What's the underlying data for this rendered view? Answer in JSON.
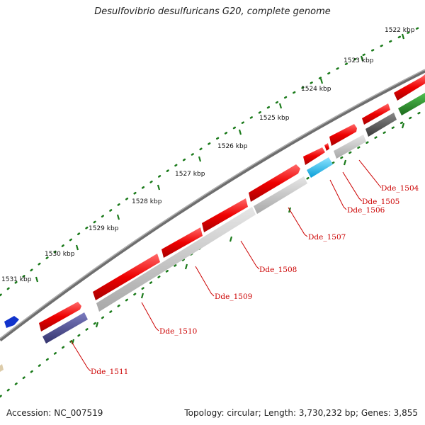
{
  "title": "Desulfovibrio desulfuricans G20, complete genome",
  "footer": {
    "accession": "Accession: NC_007519",
    "summary": "Topology: circular; Length: 3,730,232 bp; Genes: 3,855"
  },
  "ticks": [
    {
      "label": "1522 kbp",
      "kbp": 1522
    },
    {
      "label": "1523 kbp",
      "kbp": 1523
    },
    {
      "label": "1524 kbp",
      "kbp": 1524
    },
    {
      "label": "1525 kbp",
      "kbp": 1525
    },
    {
      "label": "1526 kbp",
      "kbp": 1526
    },
    {
      "label": "1527 kbp",
      "kbp": 1527
    },
    {
      "label": "1528 kbp",
      "kbp": 1528
    },
    {
      "label": "1529 kbp",
      "kbp": 1529
    },
    {
      "label": "1530 kbp",
      "kbp": 1530
    },
    {
      "label": "1531 kbp",
      "kbp": 1531
    }
  ],
  "gene_labels": [
    {
      "name": "Dde_1504"
    },
    {
      "name": "Dde_1505"
    },
    {
      "name": "Dde_1506"
    },
    {
      "name": "Dde_1507"
    },
    {
      "name": "Dde_1508"
    },
    {
      "name": "Dde_1509"
    },
    {
      "name": "Dde_1510"
    },
    {
      "name": "Dde_1511"
    }
  ],
  "colors": {
    "backbone": "#7a7a7a",
    "tick": "#1a7a1a",
    "label": "#cc0000",
    "cds": "#ee0000",
    "grey_feature": "#bcbcbc",
    "dark_feature": "#555555",
    "cyan_feature": "#22bbee",
    "navy_feature": "#4a4a8a",
    "blue_feature": "#1133cc",
    "green_feature": "#2a8a2a"
  }
}
